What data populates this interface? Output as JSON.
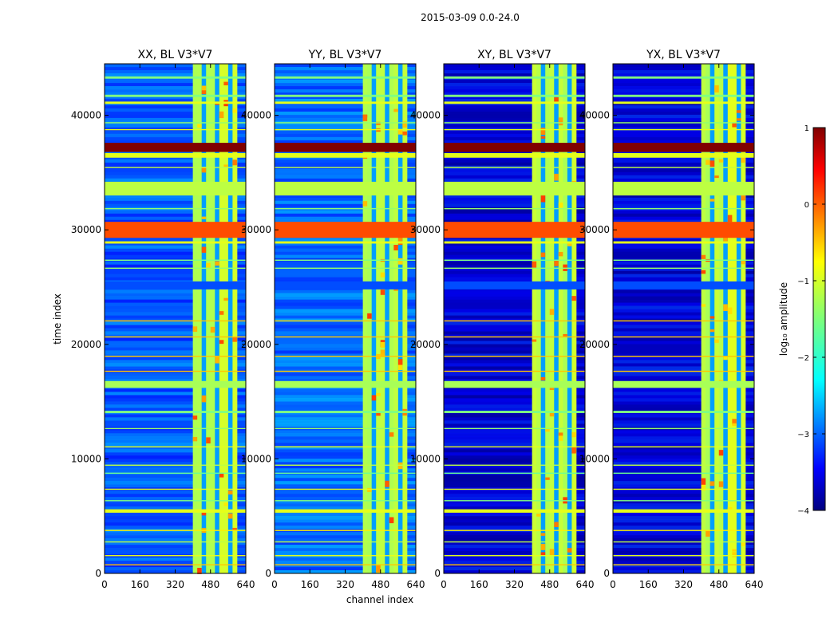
{
  "chart_data": {
    "type": "heatmap",
    "suptitle": "2015-03-09 0.0-24.0",
    "xlabel": "channel index",
    "ylabel": "time index",
    "xlim": [
      0,
      640
    ],
    "ylim": [
      0,
      44500
    ],
    "xticks": [
      0,
      160,
      320,
      480,
      640
    ],
    "yticks": [
      0,
      10000,
      20000,
      30000,
      40000
    ],
    "panels": [
      {
        "title": "XX, BL V3*V7",
        "bright_channels": [
          400,
          600
        ],
        "noise_level": -2.4
      },
      {
        "title": "YY, BL V3*V7",
        "bright_channels": [
          400,
          600
        ],
        "noise_level": -2.3
      },
      {
        "title": "XY, BL V3*V7",
        "bright_channels": [
          400,
          600
        ],
        "noise_level": -3.0
      },
      {
        "title": "YX, BL V3*V7",
        "bright_channels": [
          400,
          600
        ],
        "noise_level": -3.0
      }
    ],
    "time_bands": [
      {
        "from": 36800,
        "to": 37600,
        "value": 1.0
      },
      {
        "from": 36300,
        "to": 36700,
        "value": -1.0
      },
      {
        "from": 33000,
        "to": 34200,
        "value": -1.2
      },
      {
        "from": 29300,
        "to": 30700,
        "value": 0.0
      },
      {
        "from": 24800,
        "to": 25500,
        "value": -3.0
      },
      {
        "from": 16200,
        "to": 16800,
        "value": -1.3
      },
      {
        "from": 5300,
        "to": 5600,
        "value": -1.0
      },
      {
        "from": 41600,
        "to": 41800,
        "value": -1.5
      },
      {
        "from": 41000,
        "to": 41200,
        "value": -1.0
      },
      {
        "from": 43200,
        "to": 43400,
        "value": -1.5
      },
      {
        "from": 39300,
        "to": 39400,
        "value": -1.4
      },
      {
        "from": 38700,
        "to": 38800,
        "value": -1.0
      },
      {
        "from": 35400,
        "to": 35500,
        "value": -1.2
      },
      {
        "from": 31800,
        "to": 31900,
        "value": -1.4
      },
      {
        "from": 28800,
        "to": 29000,
        "value": -1.0
      },
      {
        "from": 27300,
        "to": 27400,
        "value": -1.5
      },
      {
        "from": 26600,
        "to": 26700,
        "value": -1.4
      },
      {
        "from": 22000,
        "to": 22100,
        "value": -0.6
      },
      {
        "from": 20600,
        "to": 20700,
        "value": -0.6
      },
      {
        "from": 18900,
        "to": 19000,
        "value": -0.6
      },
      {
        "from": 17600,
        "to": 17700,
        "value": -0.6
      },
      {
        "from": 14000,
        "to": 14200,
        "value": -1.5
      },
      {
        "from": 12600,
        "to": 12700,
        "value": -1.4
      },
      {
        "from": 11000,
        "to": 11100,
        "value": -1.0
      },
      {
        "from": 9400,
        "to": 9500,
        "value": -1.2
      },
      {
        "from": 8700,
        "to": 8800,
        "value": -1.6
      },
      {
        "from": 7300,
        "to": 7400,
        "value": -1.0
      },
      {
        "from": 6300,
        "to": 6400,
        "value": -1.5
      },
      {
        "from": 3700,
        "to": 3800,
        "value": -0.8
      },
      {
        "from": 2700,
        "to": 2800,
        "value": -1.2
      },
      {
        "from": 1500,
        "to": 1600,
        "value": -1.0
      },
      {
        "from": 700,
        "to": 800,
        "value": -0.6
      }
    ],
    "colorbar": {
      "label": "log₁₀ amplitude",
      "range": [
        -4,
        1
      ],
      "ticks": [
        1,
        0,
        -1,
        -2,
        -3,
        -4
      ],
      "tick_labels": [
        "1",
        "0",
        "−1",
        "−2",
        "−3",
        "−4"
      ]
    }
  }
}
